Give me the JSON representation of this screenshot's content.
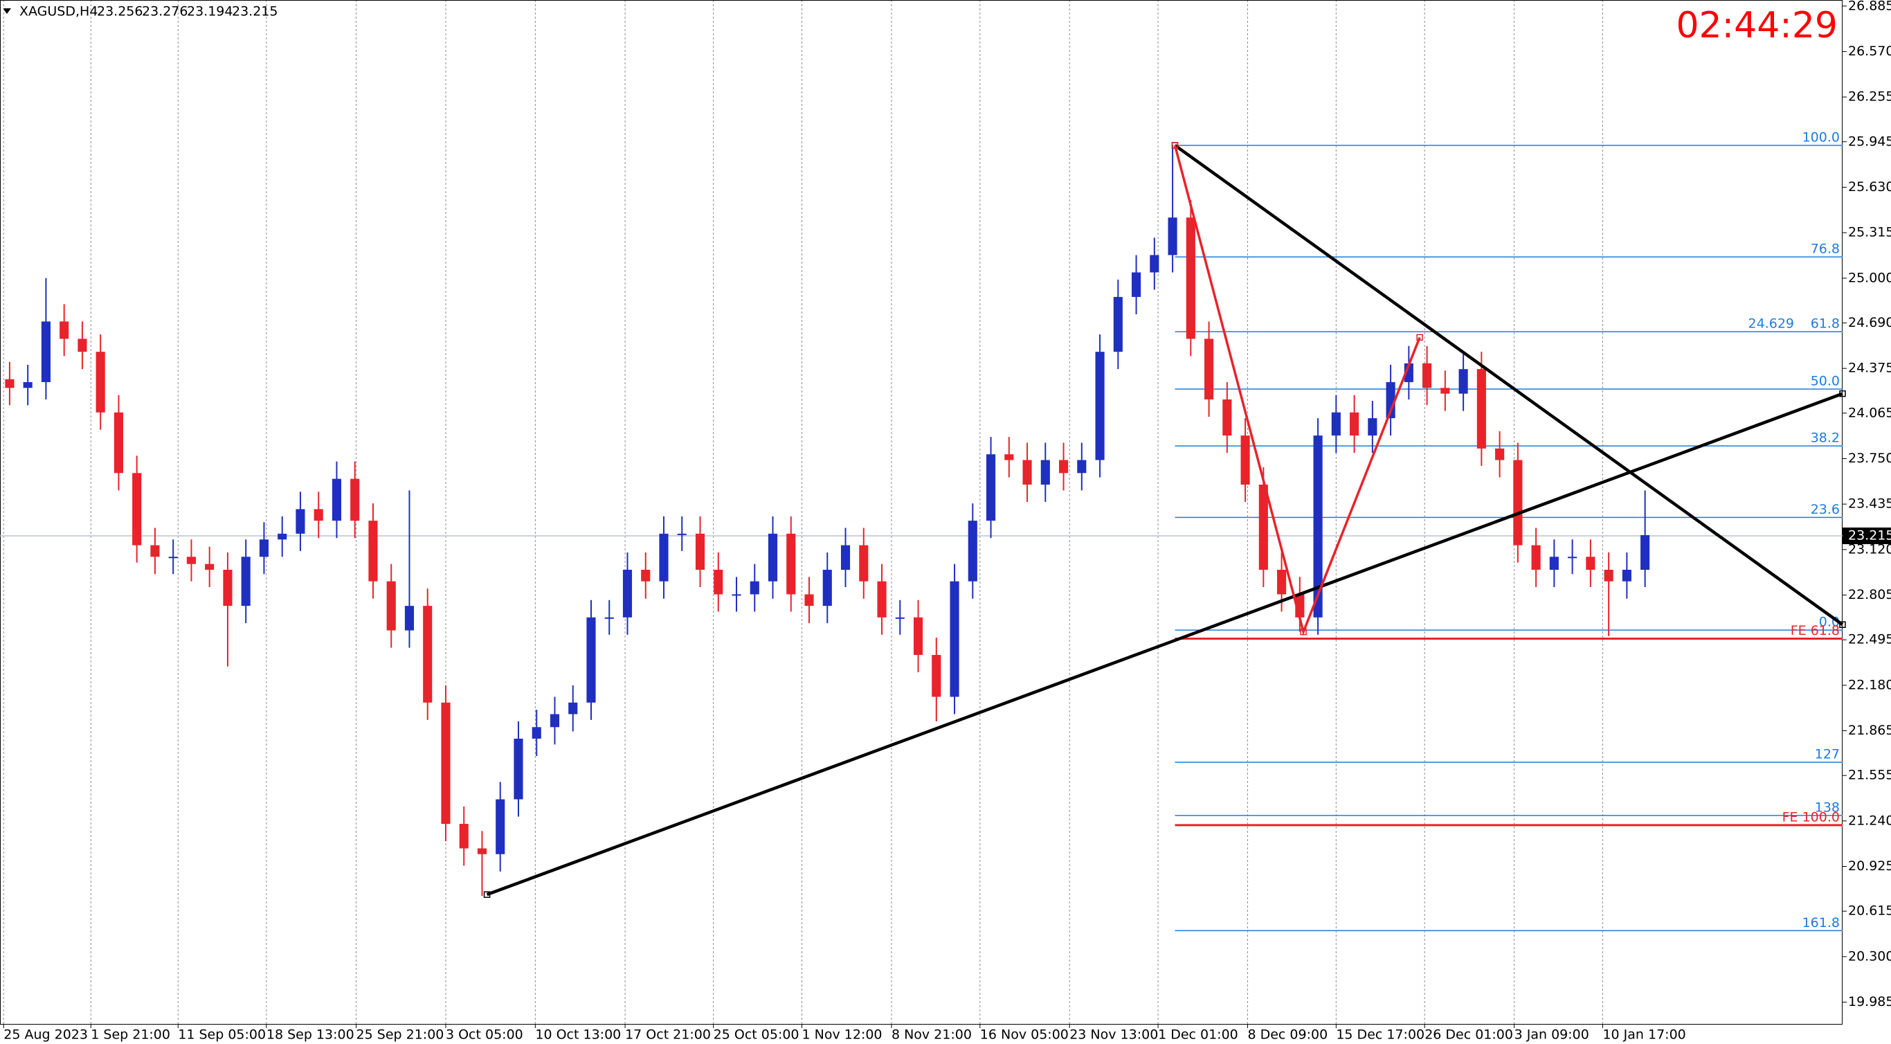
{
  "chart_data": {
    "type": "candlestick",
    "header": {
      "symbol": "XAGUSD,H4",
      "open": 23.256,
      "high": 23.276,
      "low": 23.194,
      "close": 23.215
    },
    "timer": "02:44:29",
    "current_price": 23.215,
    "up_color": "#1f2fbf",
    "down_color": "#e8232b",
    "xlim": [
      -0.53,
      100.87
    ],
    "ylim": [
      19.834,
      26.927
    ],
    "xticks": [
      {
        "value": -0.33,
        "label": "25 Aug 2023"
      },
      {
        "value": 4.47,
        "label": "1 Sep 21:00"
      },
      {
        "value": 9.27,
        "label": "11 Sep 05:00"
      },
      {
        "value": 14.13,
        "label": "18 Sep 13:00"
      },
      {
        "value": 19.07,
        "label": "25 Sep 21:00"
      },
      {
        "value": 24,
        "label": "3 Oct 05:00"
      },
      {
        "value": 28.93,
        "label": "10 Oct 13:00"
      },
      {
        "value": 33.87,
        "label": "17 Oct 21:00"
      },
      {
        "value": 38.73,
        "label": "25 Oct 05:00"
      },
      {
        "value": 43.6,
        "label": "1 Nov 12:00"
      },
      {
        "value": 48.53,
        "label": "8 Nov 21:00"
      },
      {
        "value": 53.4,
        "label": "16 Nov 05:00"
      },
      {
        "value": 58.33,
        "label": "23 Nov 13:00"
      },
      {
        "value": 63.2,
        "label": "1 Dec 01:00"
      },
      {
        "value": 68.13,
        "label": "8 Dec 09:00"
      },
      {
        "value": 73,
        "label": "15 Dec 17:00"
      },
      {
        "value": 77.87,
        "label": "26 Dec 01:00"
      },
      {
        "value": 82.8,
        "label": "3 Jan 09:00"
      },
      {
        "value": 87.67,
        "label": "10 Jan 17:00"
      }
    ],
    "yticks": [
      26.885,
      {
        "value": 26.57,
        "label": "26.570"
      },
      26.255,
      25.945,
      {
        "value": 25.63,
        "label": "25.630"
      },
      25.315,
      {
        "value": 25,
        "label": "25.000"
      },
      {
        "value": 24.69,
        "label": "24.690"
      },
      24.375,
      24.065,
      {
        "value": 23.75,
        "label": "23.750"
      },
      23.435,
      {
        "value": 23.12,
        "label": "23.120"
      },
      22.805,
      22.495,
      {
        "value": 22.18,
        "label": "22.180"
      },
      21.865,
      21.555,
      {
        "value": 21.24,
        "label": "21.240"
      },
      20.925,
      20.615,
      {
        "value": 20.3,
        "label": "20.300"
      },
      19.985
    ],
    "open": [
      24.3,
      24.24,
      24.28,
      24.7,
      24.58,
      24.49,
      24.07,
      23.65,
      23.15,
      23.07,
      23.07,
      23.02,
      22.98,
      22.73,
      23.07,
      23.19,
      23.23,
      23.4,
      23.32,
      23.61,
      23.32,
      22.9,
      22.56,
      22.73,
      22.06,
      21.22,
      21.05,
      21.01,
      21.39,
      21.81,
      21.89,
      21.98,
      22.06,
      22.65,
      22.65,
      22.98,
      22.9,
      23.23,
      23.23,
      22.98,
      22.81,
      22.81,
      22.9,
      23.23,
      22.81,
      22.73,
      22.98,
      23.15,
      22.9,
      22.65,
      22.65,
      22.39,
      22.1,
      22.9,
      23.32,
      23.78,
      23.74,
      23.57,
      23.74,
      23.65,
      23.74,
      24.49,
      24.87,
      25.04,
      25.16,
      25.42,
      24.58,
      24.16,
      23.91,
      23.57,
      22.98,
      22.81,
      22.65,
      23.91,
      24.07,
      23.91,
      24.03,
      24.28,
      24.41,
      24.24,
      24.2,
      24.37,
      23.82,
      23.74,
      23.15,
      22.98,
      23.07,
      23.07,
      22.98,
      22.9,
      22.98
    ],
    "high": [
      24.42,
      24.4,
      25.0,
      24.82,
      24.7,
      24.61,
      24.19,
      23.77,
      23.27,
      23.19,
      23.19,
      23.14,
      23.1,
      23.19,
      23.31,
      23.35,
      23.52,
      23.52,
      23.73,
      23.73,
      23.44,
      23.02,
      23.53,
      22.85,
      22.18,
      21.34,
      21.17,
      21.51,
      21.93,
      22.01,
      22.1,
      22.18,
      22.77,
      22.77,
      23.1,
      23.1,
      23.35,
      23.35,
      23.35,
      23.1,
      22.93,
      23.02,
      23.35,
      23.35,
      22.93,
      23.1,
      23.27,
      23.27,
      23.02,
      22.77,
      22.77,
      22.51,
      23.02,
      23.44,
      23.9,
      23.9,
      23.86,
      23.86,
      23.86,
      23.86,
      24.61,
      24.99,
      25.16,
      25.28,
      25.92,
      25.54,
      24.7,
      24.28,
      24.03,
      23.69,
      23.1,
      22.93,
      24.03,
      24.19,
      24.19,
      24.15,
      24.4,
      24.53,
      24.53,
      24.36,
      24.49,
      24.49,
      23.94,
      23.86,
      23.27,
      23.19,
      23.19,
      23.19,
      23.1,
      23.1,
      23.53
    ],
    "low": [
      24.12,
      24.12,
      24.16,
      24.46,
      24.37,
      23.95,
      23.53,
      23.03,
      22.95,
      22.95,
      22.9,
      22.86,
      22.31,
      22.61,
      22.95,
      23.07,
      23.11,
      23.2,
      23.2,
      23.2,
      22.78,
      22.44,
      22.44,
      21.94,
      21.1,
      20.93,
      20.72,
      20.89,
      21.27,
      21.69,
      21.77,
      21.86,
      21.94,
      22.53,
      22.53,
      22.78,
      22.78,
      23.11,
      22.86,
      22.69,
      22.69,
      22.69,
      22.78,
      22.69,
      22.61,
      22.61,
      22.86,
      22.78,
      22.53,
      22.53,
      22.27,
      21.93,
      21.98,
      22.78,
      23.2,
      23.62,
      23.45,
      23.45,
      23.53,
      23.53,
      23.62,
      24.37,
      24.75,
      24.92,
      25.04,
      24.46,
      24.04,
      23.79,
      23.45,
      22.86,
      22.69,
      22.55,
      22.53,
      23.79,
      23.79,
      23.79,
      23.91,
      24.16,
      24.12,
      24.08,
      24.08,
      23.7,
      23.62,
      23.03,
      22.86,
      22.86,
      22.95,
      22.86,
      22.52,
      22.78,
      22.86
    ],
    "close": [
      24.24,
      24.28,
      24.7,
      24.58,
      24.49,
      24.07,
      23.65,
      23.15,
      23.07,
      23.07,
      23.02,
      22.98,
      22.73,
      23.07,
      23.19,
      23.23,
      23.4,
      23.32,
      23.61,
      23.32,
      22.9,
      22.56,
      22.73,
      22.06,
      21.22,
      21.05,
      21.01,
      21.39,
      21.81,
      21.89,
      21.98,
      22.06,
      22.65,
      22.65,
      22.98,
      22.9,
      23.23,
      23.23,
      22.98,
      22.81,
      22.81,
      22.9,
      23.23,
      22.81,
      22.73,
      22.98,
      23.15,
      22.9,
      22.65,
      22.65,
      22.39,
      22.1,
      22.9,
      23.32,
      23.78,
      23.74,
      23.57,
      23.74,
      23.65,
      23.74,
      24.49,
      24.87,
      25.04,
      25.16,
      25.42,
      24.58,
      24.16,
      23.91,
      23.57,
      22.98,
      22.81,
      22.65,
      23.91,
      24.07,
      23.91,
      24.03,
      24.28,
      24.41,
      24.24,
      24.2,
      24.37,
      23.82,
      23.74,
      23.15,
      22.98,
      23.07,
      23.07,
      22.98,
      22.9,
      22.98,
      23.22
    ],
    "fib_start": 64.13,
    "fib_color": "#1e7be0",
    "fib_levels": [
      {
        "label": "100.0",
        "price": 25.92
      },
      {
        "label": "76.8",
        "price": 25.147
      },
      {
        "label": "61.8",
        "price": 24.629,
        "print_price": true
      },
      {
        "label": "50.0",
        "price": 24.232
      },
      {
        "label": "38.2",
        "price": 23.838
      },
      {
        "label": "23.6",
        "price": 23.343
      },
      {
        "label": "0.0",
        "price": 22.562
      },
      {
        "label": "127",
        "price": 21.647
      },
      {
        "label": "138",
        "price": 21.278
      },
      {
        "label": "161.8",
        "price": 20.48
      }
    ],
    "fe_color": "#e8232b",
    "fe_levels": [
      {
        "label": "FE 61.8",
        "price": 22.503
      },
      {
        "label": "FE 100.0",
        "price": 21.211
      }
    ],
    "trend_lines": [
      {
        "color": "#000000",
        "x": [
          26.27,
          100.87
        ],
        "y": [
          20.73,
          24.2
        ]
      },
      {
        "color": "#000000",
        "x": [
          64.13,
          100.87
        ],
        "y": [
          25.92,
          22.6
        ]
      },
      {
        "color": "#e8232b",
        "x": [
          64.13,
          71.2,
          77.6
        ],
        "y": [
          25.92,
          22.55,
          24.59
        ]
      }
    ]
  }
}
